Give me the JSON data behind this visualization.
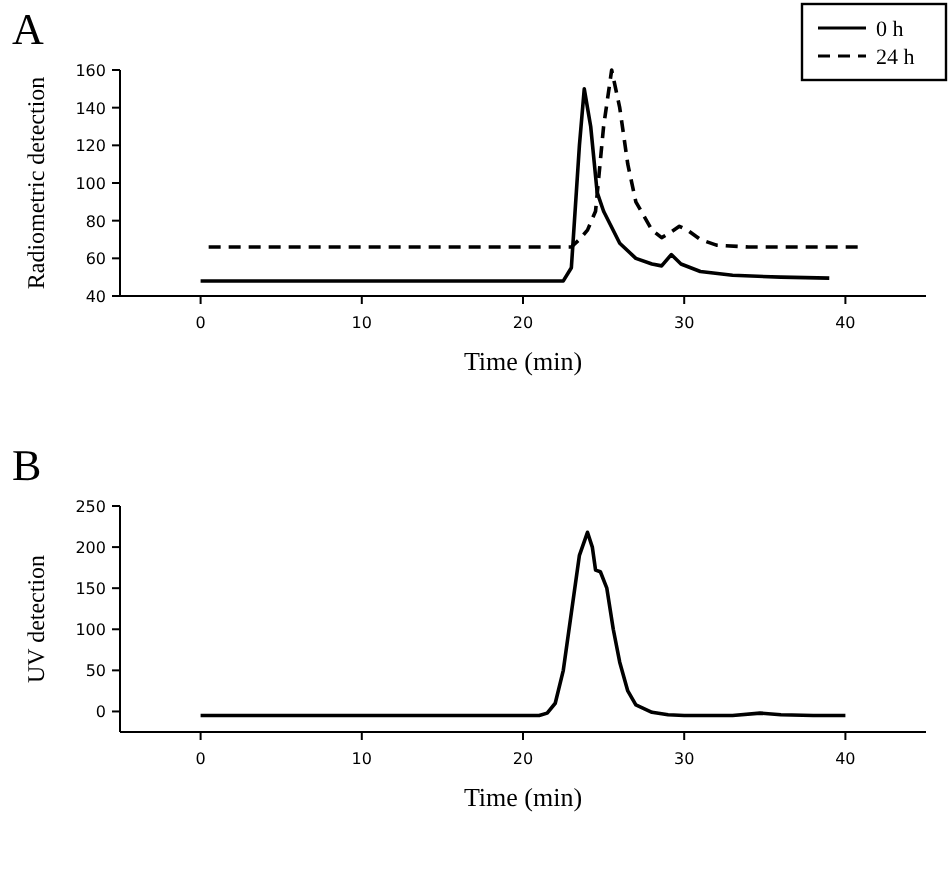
{
  "chart_data": [
    {
      "type": "line",
      "title": "A",
      "xlabel": "Time (min)",
      "ylabel": "Radiometric detection",
      "xlim": [
        -5,
        45
      ],
      "xticks": [
        0,
        10,
        20,
        30,
        40
      ],
      "ylim": [
        40,
        160
      ],
      "yticks": [
        40,
        60,
        80,
        100,
        120,
        140,
        160
      ],
      "grid": false,
      "legend": "top right",
      "series": [
        {
          "name": "0 h",
          "color": "#000000",
          "line_style": "solid",
          "x": [
            0,
            22.5,
            23,
            23.5,
            23.8,
            24.2,
            24.6,
            25,
            26,
            27,
            28,
            28.6,
            29.2,
            29.8,
            31,
            33,
            36,
            39
          ],
          "values": [
            48,
            48,
            55,
            120,
            150,
            130,
            95,
            85,
            68,
            60,
            57,
            56,
            62,
            57,
            53,
            51,
            50,
            49.5
          ]
        },
        {
          "name": "24 h",
          "color": "#000000",
          "line_style": "dashed",
          "x": [
            0.5,
            23,
            23.5,
            24,
            24.5,
            25,
            25.5,
            26,
            26.5,
            27,
            28,
            28.6,
            29.2,
            29.7,
            30.2,
            31,
            32,
            34,
            41
          ],
          "values": [
            66,
            66,
            70,
            75,
            85,
            130,
            160,
            140,
            110,
            90,
            75,
            71,
            74,
            77,
            75,
            70,
            67,
            66,
            66
          ]
        }
      ]
    },
    {
      "type": "line",
      "title": "B",
      "xlabel": "Time (min)",
      "ylabel": "UV detection",
      "xlim": [
        -5,
        45
      ],
      "xticks": [
        0,
        10,
        20,
        30,
        40
      ],
      "ylim": [
        -25,
        250
      ],
      "yticks": [
        0,
        50,
        100,
        150,
        200,
        250
      ],
      "grid": false,
      "legend": false,
      "series": [
        {
          "color": "#000000",
          "line_style": "solid",
          "x": [
            0,
            21,
            21.5,
            22,
            22.5,
            23,
            23.5,
            24,
            24.3,
            24.5,
            24.8,
            25.2,
            25.6,
            26,
            26.5,
            27,
            28,
            29,
            30,
            33,
            34.7,
            36,
            38,
            40
          ],
          "values": [
            -5,
            -5,
            -2,
            10,
            50,
            120,
            190,
            218,
            200,
            172,
            170,
            150,
            100,
            60,
            25,
            8,
            -1,
            -4,
            -5,
            -5,
            -2,
            -4,
            -5,
            -5
          ]
        }
      ]
    }
  ]
}
